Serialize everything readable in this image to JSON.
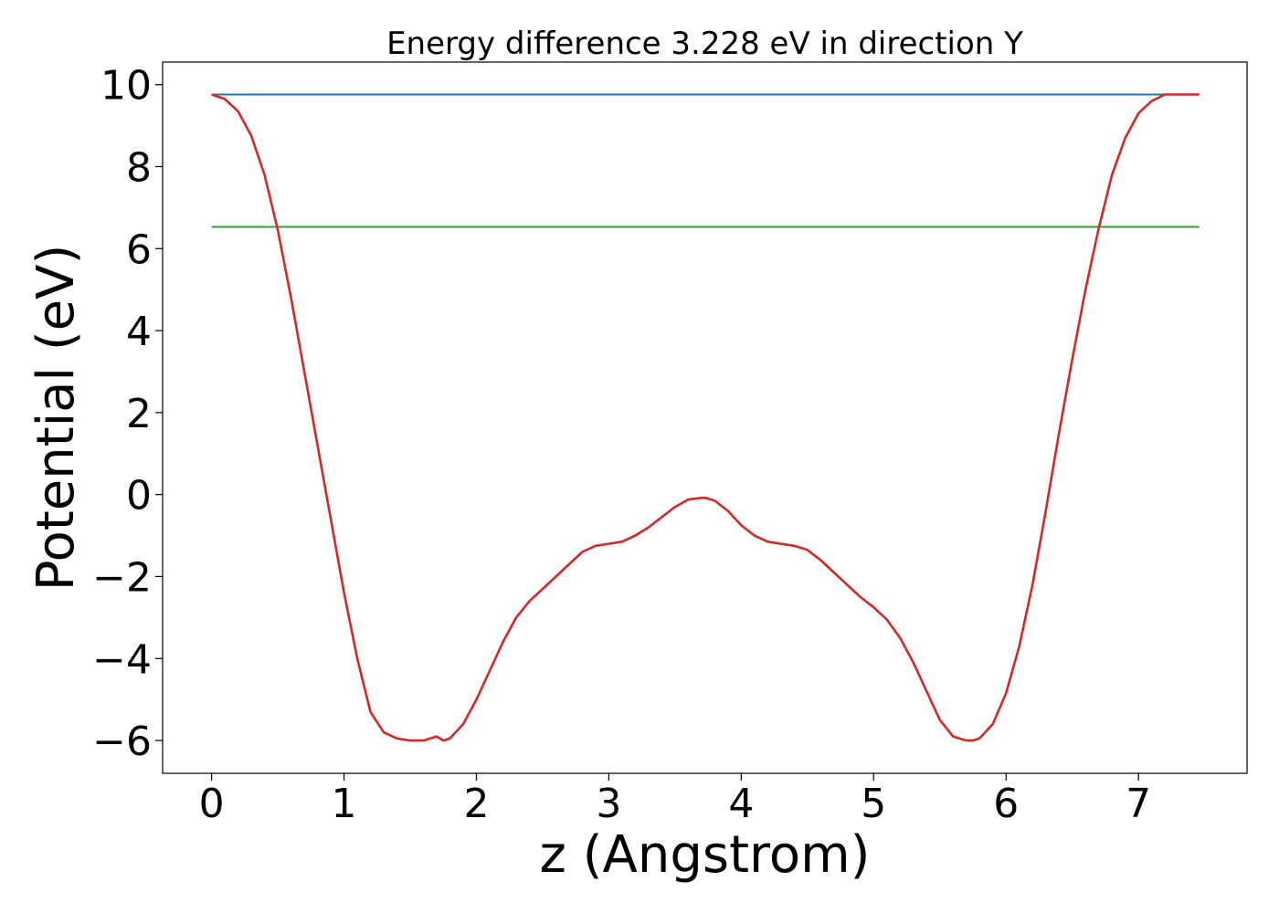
{
  "chart_data": {
    "type": "line",
    "title": "Energy difference 3.228 eV in direction Y",
    "xlabel": "z (Angstrom)",
    "ylabel": "Potential (eV)",
    "xlim": [
      -0.37,
      7.82
    ],
    "ylim": [
      -6.8,
      10.55
    ],
    "xticks": [
      0,
      1,
      2,
      3,
      4,
      5,
      6,
      7
    ],
    "yticks": [
      10,
      8,
      6,
      4,
      2,
      0,
      -2,
      -4,
      -6
    ],
    "ytick_labels": [
      "10",
      "8",
      "6",
      "4",
      "2",
      "0",
      "−2",
      "−4",
      "−6"
    ],
    "grid": false,
    "series": [
      {
        "color": "#1f77b4",
        "x": [
          0,
          7.46
        ],
        "y": [
          9.76,
          9.76
        ]
      },
      {
        "color": "#2ca02c",
        "x": [
          0,
          7.46
        ],
        "y": [
          6.53,
          6.53
        ]
      },
      {
        "color": "#d62728",
        "x": [
          0,
          0.1,
          0.2,
          0.3,
          0.4,
          0.5,
          0.6,
          0.7,
          0.8,
          0.9,
          1.0,
          1.1,
          1.2,
          1.3,
          1.4,
          1.5,
          1.6,
          1.7,
          1.75,
          1.8,
          1.9,
          2.0,
          2.1,
          2.2,
          2.3,
          2.4,
          2.5,
          2.6,
          2.7,
          2.8,
          2.9,
          3.0,
          3.1,
          3.2,
          3.3,
          3.4,
          3.5,
          3.6,
          3.7,
          3.73,
          3.8,
          3.9,
          4.0,
          4.1,
          4.2,
          4.3,
          4.4,
          4.5,
          4.6,
          4.7,
          4.8,
          4.9,
          5.0,
          5.1,
          5.2,
          5.3,
          5.4,
          5.5,
          5.6,
          5.7,
          5.75,
          5.8,
          5.9,
          6.0,
          6.1,
          6.2,
          6.3,
          6.4,
          6.5,
          6.6,
          6.7,
          6.8,
          6.9,
          7.0,
          7.1,
          7.2,
          7.3,
          7.4,
          7.46
        ],
        "y": [
          9.76,
          9.65,
          9.35,
          8.75,
          7.8,
          6.45,
          4.8,
          3.0,
          1.2,
          -0.6,
          -2.4,
          -4.0,
          -5.3,
          -5.8,
          -5.95,
          -6.0,
          -6.0,
          -5.9,
          -6.0,
          -5.95,
          -5.6,
          -5.0,
          -4.3,
          -3.6,
          -3.0,
          -2.6,
          -2.3,
          -2.0,
          -1.7,
          -1.4,
          -1.25,
          -1.2,
          -1.15,
          -1.0,
          -0.8,
          -0.55,
          -0.3,
          -0.12,
          -0.08,
          -0.08,
          -0.15,
          -0.4,
          -0.75,
          -1.0,
          -1.15,
          -1.2,
          -1.25,
          -1.35,
          -1.6,
          -1.9,
          -2.2,
          -2.5,
          -2.75,
          -3.05,
          -3.5,
          -4.1,
          -4.8,
          -5.5,
          -5.9,
          -6.0,
          -6.0,
          -5.95,
          -5.6,
          -4.85,
          -3.7,
          -2.2,
          -0.4,
          1.5,
          3.3,
          5.0,
          6.5,
          7.8,
          8.7,
          9.3,
          9.6,
          9.76,
          9.76,
          9.76,
          9.76
        ]
      }
    ]
  }
}
